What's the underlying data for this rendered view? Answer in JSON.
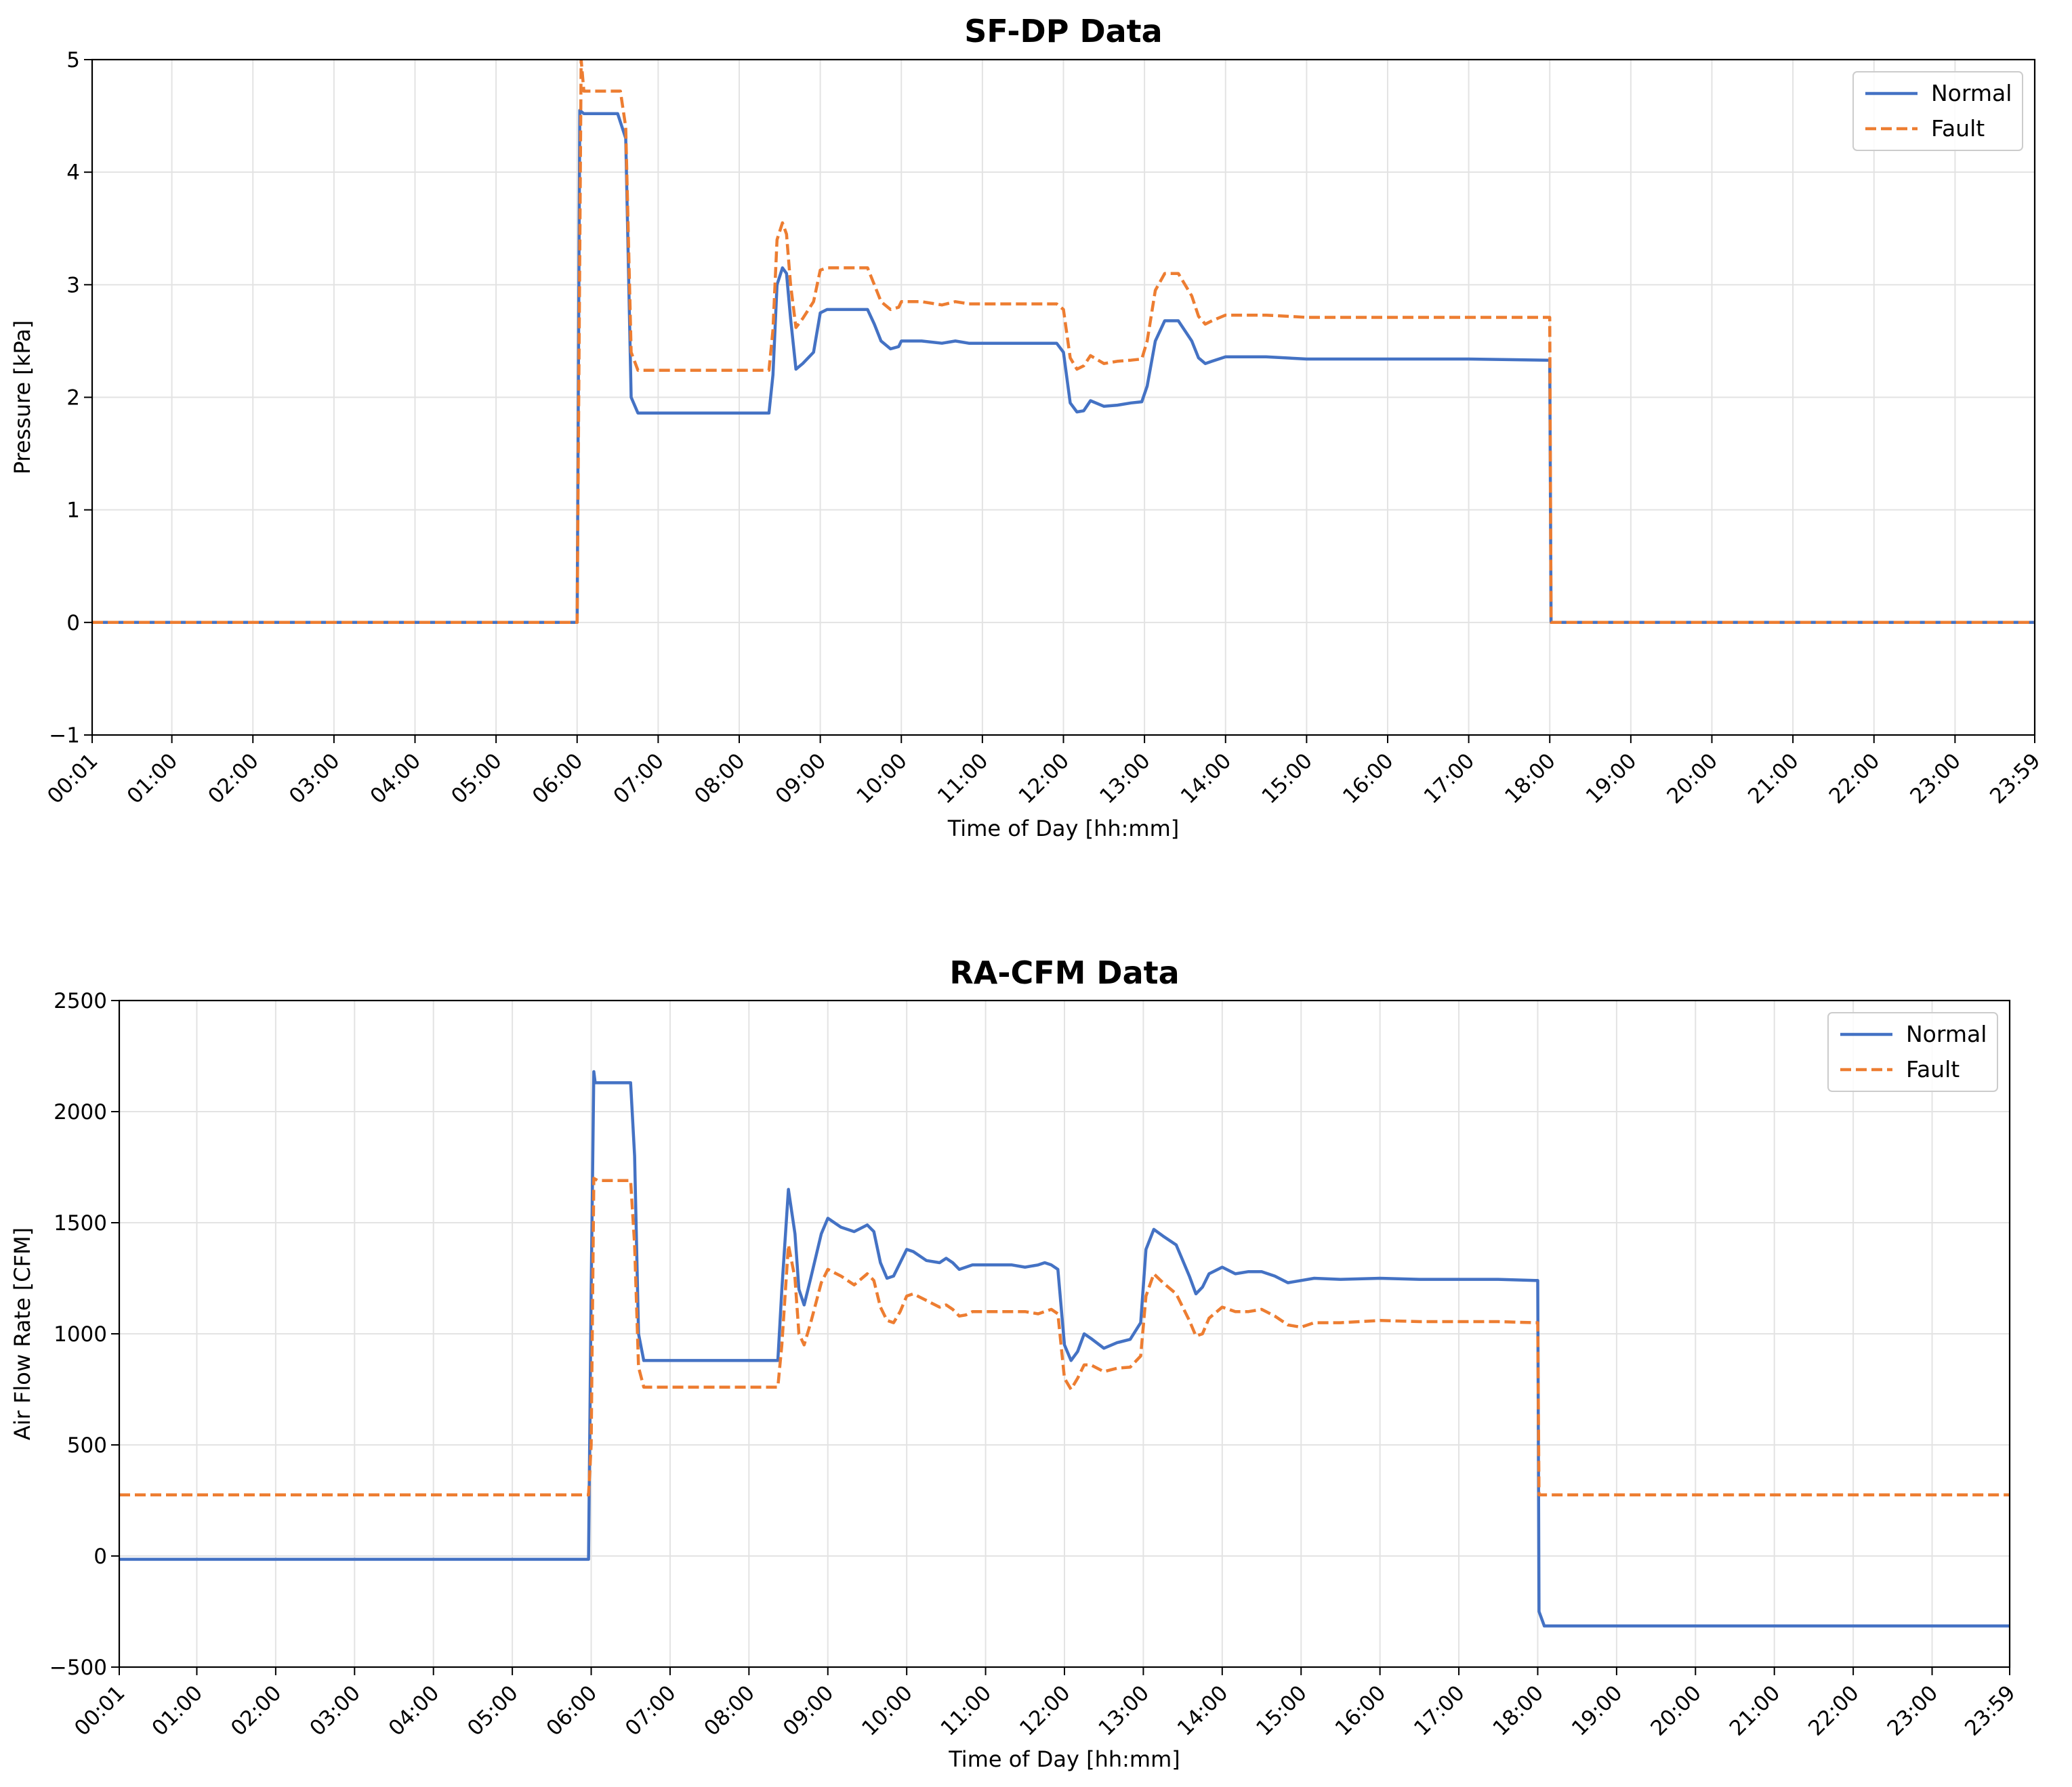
{
  "chart_data": [
    {
      "type": "line",
      "title": "SF-DP Data",
      "xlabel": "Time of Day [hh:mm]",
      "ylabel": "Pressure [kPa]",
      "ylim": [
        -1,
        5
      ],
      "yticks": [
        "−1",
        "0",
        "1",
        "2",
        "3",
        "4",
        "5"
      ],
      "xlim": [
        "00:01",
        "23:59"
      ],
      "xticks": [
        "00:01",
        "01:00",
        "02:00",
        "03:00",
        "04:00",
        "05:00",
        "06:00",
        "07:00",
        "08:00",
        "09:00",
        "10:00",
        "11:00",
        "12:00",
        "13:00",
        "14:00",
        "15:00",
        "16:00",
        "17:00",
        "18:00",
        "19:00",
        "20:00",
        "21:00",
        "22:00",
        "23:00",
        "23:59"
      ],
      "grid": true,
      "legend_position": "top-right",
      "series": [
        {
          "name": "Normal",
          "color": "#4472C4",
          "style": "solid",
          "x": [
            "00:01",
            "06:00",
            "06:02",
            "06:05",
            "06:30",
            "06:36",
            "06:40",
            "06:45",
            "07:00",
            "08:00",
            "08:22",
            "08:25",
            "08:28",
            "08:32",
            "08:35",
            "08:38",
            "08:42",
            "08:47",
            "08:55",
            "09:00",
            "09:05",
            "09:35",
            "09:40",
            "09:45",
            "09:52",
            "09:58",
            "10:00",
            "10:15",
            "10:30",
            "10:40",
            "10:50",
            "11:00",
            "11:30",
            "11:45",
            "11:55",
            "12:00",
            "12:05",
            "12:10",
            "12:15",
            "12:20",
            "12:30",
            "12:40",
            "12:50",
            "12:58",
            "13:02",
            "13:08",
            "13:15",
            "13:25",
            "13:35",
            "13:40",
            "13:45",
            "13:50",
            "14:00",
            "14:30",
            "15:00",
            "15:30",
            "16:00",
            "17:00",
            "17:58",
            "18:00",
            "18:01",
            "18:05",
            "23:59"
          ],
          "y": [
            0,
            0,
            4.55,
            4.52,
            4.52,
            4.3,
            2.0,
            1.86,
            1.86,
            1.86,
            1.86,
            2.2,
            3.0,
            3.15,
            3.1,
            2.7,
            2.25,
            2.3,
            2.4,
            2.75,
            2.78,
            2.78,
            2.65,
            2.5,
            2.43,
            2.45,
            2.5,
            2.5,
            2.48,
            2.5,
            2.48,
            2.48,
            2.48,
            2.48,
            2.48,
            2.4,
            1.95,
            1.87,
            1.88,
            1.97,
            1.92,
            1.93,
            1.95,
            1.96,
            2.1,
            2.5,
            2.68,
            2.68,
            2.5,
            2.35,
            2.3,
            2.32,
            2.36,
            2.36,
            2.34,
            2.34,
            2.34,
            2.34,
            2.33,
            2.33,
            0,
            0,
            0
          ]
        },
        {
          "name": "Fault",
          "color": "#ED7D31",
          "style": "dashed",
          "x": [
            "00:01",
            "06:00",
            "06:03",
            "06:05",
            "06:32",
            "06:36",
            "06:40",
            "06:45",
            "07:00",
            "08:00",
            "08:22",
            "08:25",
            "08:28",
            "08:32",
            "08:35",
            "08:38",
            "08:42",
            "08:47",
            "08:55",
            "09:00",
            "09:05",
            "09:35",
            "09:40",
            "09:45",
            "09:52",
            "09:58",
            "10:00",
            "10:15",
            "10:30",
            "10:40",
            "10:50",
            "11:00",
            "11:30",
            "11:45",
            "11:55",
            "12:00",
            "12:05",
            "12:10",
            "12:15",
            "12:20",
            "12:30",
            "12:40",
            "12:50",
            "12:58",
            "13:02",
            "13:08",
            "13:15",
            "13:25",
            "13:35",
            "13:40",
            "13:45",
            "13:50",
            "14:00",
            "14:30",
            "15:00",
            "15:30",
            "16:00",
            "17:00",
            "17:58",
            "18:00",
            "18:01",
            "18:05",
            "23:59"
          ],
          "y": [
            0,
            0,
            5.0,
            4.72,
            4.72,
            4.4,
            2.4,
            2.24,
            2.24,
            2.24,
            2.24,
            2.6,
            3.4,
            3.55,
            3.45,
            3.0,
            2.62,
            2.7,
            2.85,
            3.13,
            3.15,
            3.15,
            3.0,
            2.85,
            2.78,
            2.8,
            2.85,
            2.85,
            2.82,
            2.85,
            2.83,
            2.83,
            2.83,
            2.83,
            2.83,
            2.78,
            2.35,
            2.25,
            2.28,
            2.37,
            2.3,
            2.32,
            2.33,
            2.34,
            2.5,
            2.95,
            3.1,
            3.1,
            2.9,
            2.72,
            2.65,
            2.68,
            2.73,
            2.73,
            2.71,
            2.71,
            2.71,
            2.71,
            2.71,
            2.71,
            0,
            0,
            0
          ]
        }
      ]
    },
    {
      "type": "line",
      "title": "RA-CFM Data",
      "xlabel": "Time of Day [hh:mm]",
      "ylabel": "Air Flow Rate [CFM]",
      "ylim": [
        -500,
        2500
      ],
      "yticks": [
        "−500",
        "0",
        "500",
        "1000",
        "1500",
        "2000",
        "2500"
      ],
      "xlim": [
        "00:01",
        "23:59"
      ],
      "xticks": [
        "00:01",
        "01:00",
        "02:00",
        "03:00",
        "04:00",
        "05:00",
        "06:00",
        "07:00",
        "08:00",
        "09:00",
        "10:00",
        "11:00",
        "12:00",
        "13:00",
        "14:00",
        "15:00",
        "16:00",
        "17:00",
        "18:00",
        "19:00",
        "20:00",
        "21:00",
        "22:00",
        "23:00",
        "23:59"
      ],
      "grid": true,
      "legend_position": "top-right",
      "series": [
        {
          "name": "Normal",
          "color": "#4472C4",
          "style": "solid",
          "x": [
            "00:01",
            "05:58",
            "06:00",
            "06:02",
            "06:03",
            "06:05",
            "06:30",
            "06:33",
            "06:36",
            "06:40",
            "07:00",
            "08:00",
            "08:22",
            "08:25",
            "08:30",
            "08:35",
            "08:38",
            "08:42",
            "08:47",
            "08:55",
            "09:00",
            "09:10",
            "09:20",
            "09:30",
            "09:35",
            "09:40",
            "09:45",
            "09:50",
            "09:55",
            "10:00",
            "10:05",
            "10:15",
            "10:25",
            "10:30",
            "10:35",
            "10:40",
            "10:45",
            "10:50",
            "11:00",
            "11:20",
            "11:30",
            "11:40",
            "11:45",
            "11:50",
            "11:55",
            "12:00",
            "12:05",
            "12:10",
            "12:15",
            "12:20",
            "12:30",
            "12:40",
            "12:50",
            "12:58",
            "13:02",
            "13:08",
            "13:15",
            "13:25",
            "13:35",
            "13:40",
            "13:45",
            "13:50",
            "14:00",
            "14:10",
            "14:20",
            "14:30",
            "14:40",
            "14:50",
            "15:00",
            "15:10",
            "15:30",
            "16:00",
            "16:30",
            "17:00",
            "17:30",
            "17:58",
            "18:00",
            "18:01",
            "18:05",
            "23:59"
          ],
          "y": [
            -15,
            -15,
            1200,
            2180,
            2130,
            2130,
            2130,
            1800,
            1000,
            880,
            880,
            880,
            880,
            1200,
            1650,
            1450,
            1200,
            1130,
            1250,
            1450,
            1520,
            1480,
            1460,
            1490,
            1460,
            1320,
            1250,
            1260,
            1320,
            1380,
            1370,
            1330,
            1320,
            1340,
            1320,
            1290,
            1300,
            1310,
            1310,
            1310,
            1300,
            1310,
            1320,
            1310,
            1290,
            950,
            880,
            920,
            1000,
            980,
            935,
            960,
            975,
            1050,
            1380,
            1470,
            1440,
            1400,
            1260,
            1180,
            1210,
            1270,
            1300,
            1270,
            1280,
            1280,
            1260,
            1230,
            1240,
            1250,
            1245,
            1250,
            1245,
            1245,
            1245,
            1240,
            1240,
            -250,
            -315,
            -315
          ]
        },
        {
          "name": "Fault",
          "color": "#ED7D31",
          "style": "dashed",
          "x": [
            "00:01",
            "05:58",
            "06:00",
            "06:02",
            "06:05",
            "06:30",
            "06:33",
            "06:36",
            "06:40",
            "07:00",
            "08:00",
            "08:22",
            "08:25",
            "08:30",
            "08:35",
            "08:38",
            "08:42",
            "08:47",
            "08:55",
            "09:00",
            "09:10",
            "09:20",
            "09:30",
            "09:35",
            "09:40",
            "09:45",
            "09:50",
            "09:55",
            "10:00",
            "10:05",
            "10:15",
            "10:25",
            "10:30",
            "10:35",
            "10:40",
            "10:45",
            "10:50",
            "11:00",
            "11:20",
            "11:30",
            "11:40",
            "11:45",
            "11:50",
            "11:55",
            "12:00",
            "12:05",
            "12:10",
            "12:15",
            "12:20",
            "12:30",
            "12:40",
            "12:50",
            "12:58",
            "13:02",
            "13:08",
            "13:15",
            "13:25",
            "13:35",
            "13:40",
            "13:45",
            "13:50",
            "14:00",
            "14:10",
            "14:20",
            "14:30",
            "14:40",
            "14:50",
            "15:00",
            "15:10",
            "15:30",
            "16:00",
            "16:30",
            "17:00",
            "17:30",
            "17:58",
            "18:00",
            "18:01",
            "18:05",
            "23:59"
          ],
          "y": [
            275,
            275,
            500,
            1700,
            1690,
            1690,
            1400,
            850,
            760,
            760,
            760,
            760,
            950,
            1400,
            1250,
            1000,
            950,
            1050,
            1230,
            1290,
            1260,
            1220,
            1270,
            1240,
            1120,
            1060,
            1050,
            1100,
            1170,
            1180,
            1150,
            1120,
            1130,
            1110,
            1080,
            1085,
            1100,
            1100,
            1100,
            1100,
            1090,
            1100,
            1110,
            1090,
            800,
            750,
            800,
            860,
            860,
            830,
            845,
            850,
            900,
            1170,
            1270,
            1230,
            1180,
            1060,
            990,
            1000,
            1070,
            1120,
            1100,
            1100,
            1110,
            1080,
            1040,
            1030,
            1050,
            1050,
            1060,
            1055,
            1055,
            1055,
            1050,
            1050,
            275,
            275,
            275
          ]
        }
      ]
    }
  ]
}
